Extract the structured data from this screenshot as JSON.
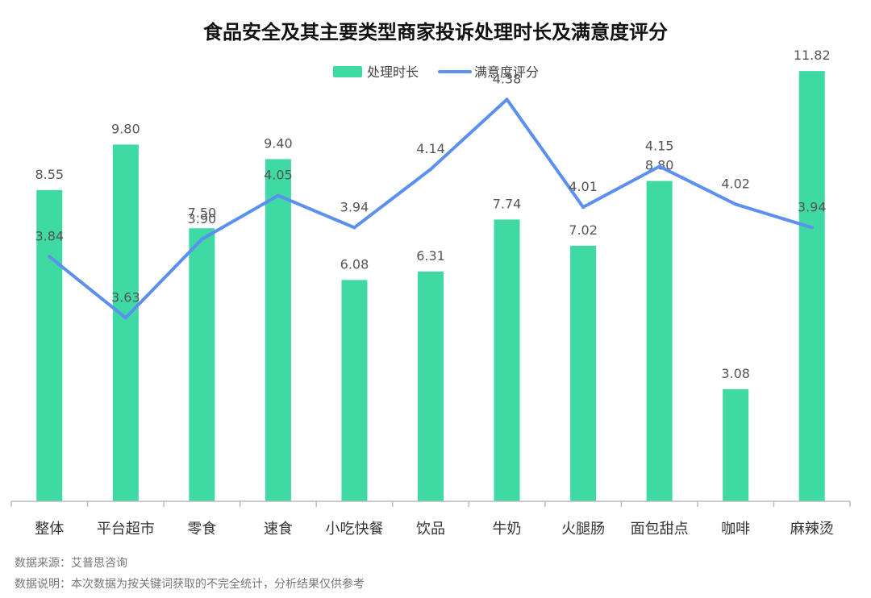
{
  "chart_data": {
    "type": "bar",
    "title": "食品安全及其主要类型商家投诉处理时长及满意度评分",
    "categories": [
      "整体",
      "平台超市",
      "零食",
      "速食",
      "小吃快餐",
      "饮品",
      "牛奶",
      "火腿肠",
      "面包甜点",
      "咖啡",
      "麻辣烫"
    ],
    "series": [
      {
        "name": "处理时长",
        "type": "bar",
        "values": [
          8.55,
          9.8,
          7.5,
          9.4,
          6.08,
          6.31,
          7.74,
          7.02,
          8.8,
          3.08,
          11.82
        ],
        "labels": [
          "8.55",
          "9.80",
          "7.50",
          "9.40",
          "6.08",
          "6.31",
          "7.74",
          "7.02",
          "8.80",
          "3.08",
          "11.82"
        ],
        "color": "#3fd9a3"
      },
      {
        "name": "满意度评分",
        "type": "line",
        "values": [
          3.84,
          3.63,
          3.9,
          4.05,
          3.94,
          4.14,
          4.38,
          4.01,
          4.15,
          4.02,
          3.94
        ],
        "labels": [
          "3.84",
          "3.63",
          "3.90",
          "4.05",
          "3.94",
          "4.14",
          "4.38",
          "4.01",
          "4.15",
          "4.02",
          "3.94"
        ],
        "color": "#5b8ff0"
      }
    ],
    "bar_axis_range": [
      0,
      12
    ],
    "line_axis_range": [
      3.0,
      4.5
    ],
    "grid": false,
    "legend_position": "top-center"
  },
  "footnotes": {
    "source": "数据来源：艾普思咨询",
    "note": "数据说明：本次数据为按关键词获取的不完全统计，分析结果仅供参考"
  }
}
